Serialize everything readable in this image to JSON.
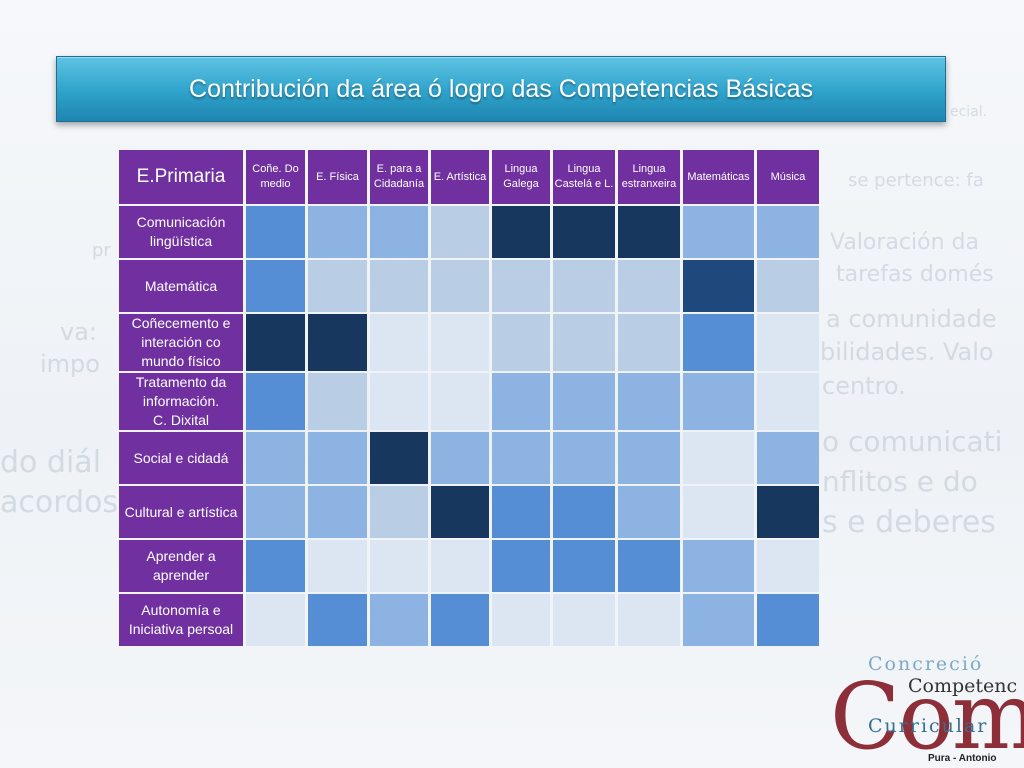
{
  "title": "Contribución da área ó logro das Competencias Básicas",
  "table": {
    "corner_label": "E.Primaria",
    "columns": [
      "Coñe.  Do medio",
      "E. Física",
      "E. para a Cidadanía",
      "E. Artística",
      "Lingua Galega",
      "Lingua Castelá e L.",
      "Lingua estranxeira",
      "Matemáticas",
      "Música"
    ],
    "rows": [
      {
        "label": "Comunicación lingüística",
        "levels": [
          2,
          3,
          3,
          4,
          0,
          0,
          0,
          3,
          3
        ]
      },
      {
        "label": "Matemática",
        "levels": [
          2,
          4,
          4,
          4,
          4,
          4,
          4,
          1,
          4
        ]
      },
      {
        "label": "Coñecemento e interación co mundo físico",
        "levels": [
          0,
          0,
          5,
          5,
          4,
          4,
          4,
          2,
          5
        ]
      },
      {
        "label": "Tratamento da información.\nC. Dixital",
        "levels": [
          2,
          4,
          5,
          5,
          3,
          3,
          3,
          3,
          5
        ]
      },
      {
        "label": "Social e cidadá",
        "levels": [
          3,
          3,
          0,
          3,
          3,
          3,
          3,
          5,
          3
        ]
      },
      {
        "label": "Cultural e artística",
        "levels": [
          3,
          3,
          4,
          0,
          2,
          2,
          3,
          5,
          0
        ]
      },
      {
        "label": "Aprender a aprender",
        "levels": [
          2,
          5,
          5,
          5,
          2,
          2,
          2,
          3,
          5
        ]
      },
      {
        "label": "Autonomía e Iniciativa persoal",
        "levels": [
          5,
          2,
          3,
          2,
          5,
          5,
          5,
          3,
          2
        ]
      }
    ]
  },
  "level_colors": [
    "#17375e",
    "#1f497d",
    "#558ed5",
    "#8db3e2",
    "#b9cde5",
    "#dce6f2"
  ],
  "background_text": [
    "Valoración da",
    "tarefas domés",
    "a comunidade",
    "bilidades. Valo",
    "centro.",
    "o comunicati",
    "nflitos e do",
    "s e deberes",
    "va:",
    "impo",
    "do diál",
    "acordos",
    "se pertence: fa",
    "pr",
    "ecial."
  ],
  "brand": {
    "big": "Comp",
    "line1": "Concreció",
    "line2": "Competenc",
    "line3": "Curricular",
    "credit": "Pura -  Antonio"
  }
}
